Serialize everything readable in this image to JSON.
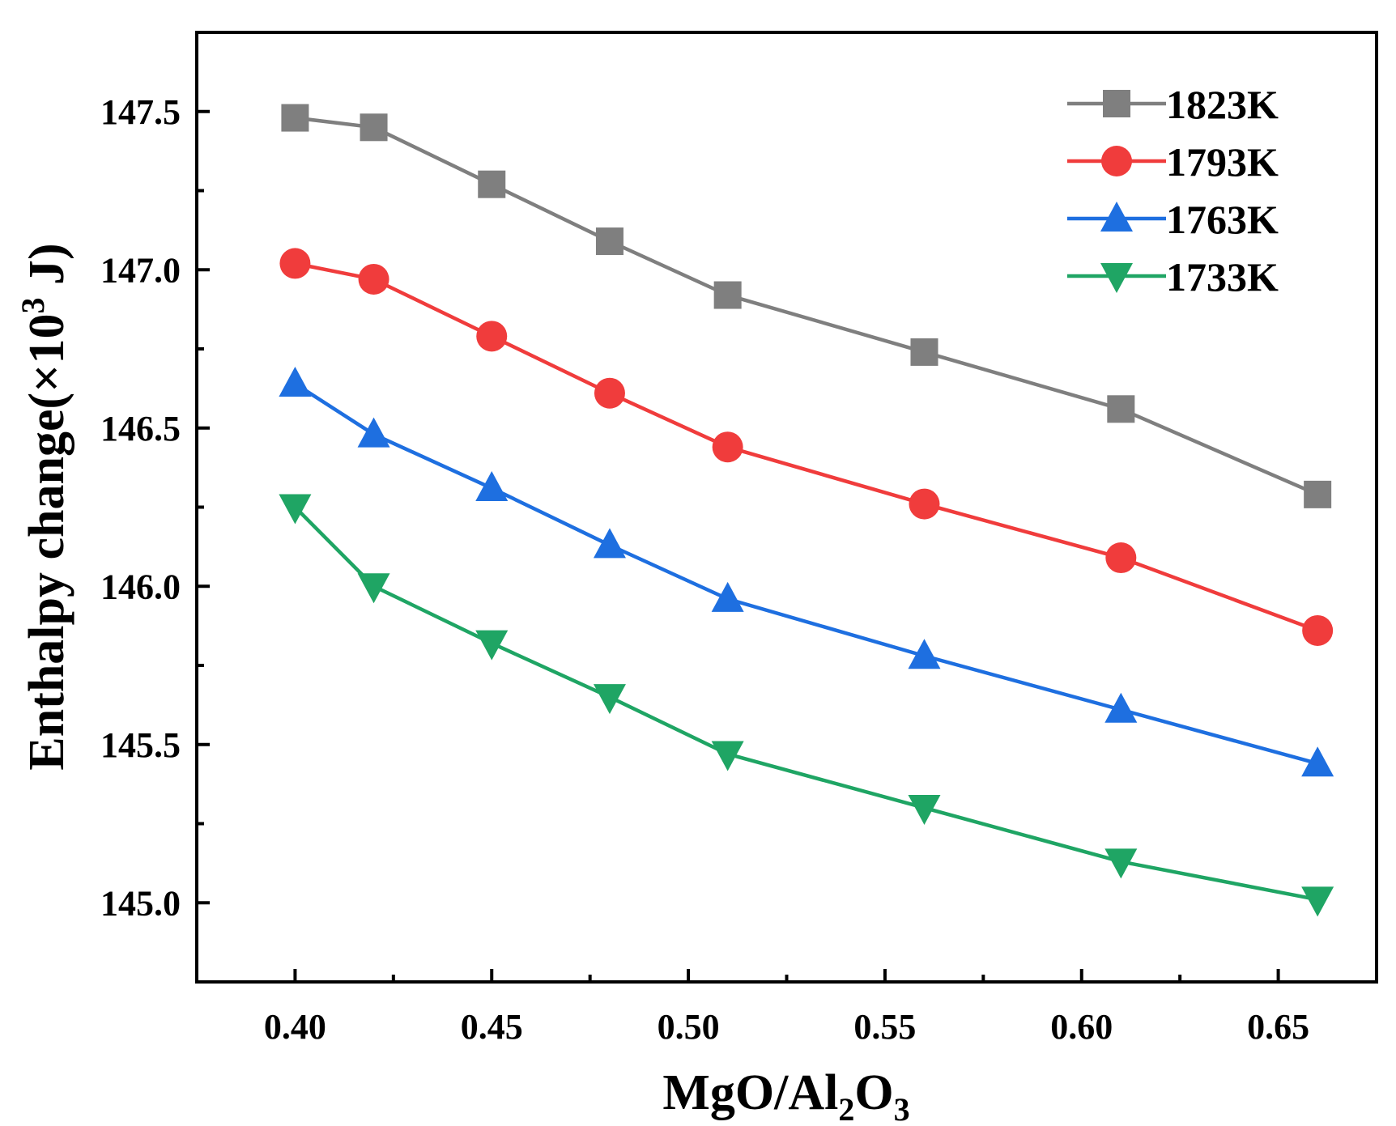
{
  "chart_data": {
    "type": "line",
    "title": "",
    "xlabel_parts": {
      "base1": "MgO/Al",
      "sub1": "2",
      "base2": "O",
      "sub2": "3"
    },
    "ylabel_parts": {
      "base": "Enthalpy change(×10",
      "sup": "3",
      "unit": " J)"
    },
    "xlim": [
      0.375,
      0.675
    ],
    "ylim": [
      144.75,
      147.75
    ],
    "x_ticks": [
      {
        "value": 0.4,
        "label": "0.40"
      },
      {
        "value": 0.45,
        "label": "0.45"
      },
      {
        "value": 0.5,
        "label": "0.50"
      },
      {
        "value": 0.55,
        "label": "0.55"
      },
      {
        "value": 0.6,
        "label": "0.60"
      },
      {
        "value": 0.65,
        "label": "0.65"
      }
    ],
    "x_minor_ticks": [
      0.425,
      0.475,
      0.525,
      0.575,
      0.625
    ],
    "y_ticks": [
      {
        "value": 145.0,
        "label": "145.0"
      },
      {
        "value": 145.5,
        "label": "145.5"
      },
      {
        "value": 146.0,
        "label": "146.0"
      },
      {
        "value": 146.5,
        "label": "146.5"
      },
      {
        "value": 147.0,
        "label": "147.0"
      },
      {
        "value": 147.5,
        "label": "147.5"
      }
    ],
    "y_minor_ticks": [
      145.25,
      145.75,
      146.25,
      146.75,
      147.25
    ],
    "x": [
      0.4,
      0.42,
      0.45,
      0.48,
      0.51,
      0.56,
      0.61,
      0.66
    ],
    "legend_position": "top-right",
    "grid": false,
    "series": [
      {
        "name": "1823K",
        "color": "#7f7f7f",
        "marker": "square",
        "values": [
          147.48,
          147.45,
          147.27,
          147.09,
          146.92,
          146.74,
          146.56,
          146.29
        ]
      },
      {
        "name": "1793K",
        "color": "#f03c3c",
        "marker": "circle",
        "values": [
          147.02,
          146.97,
          146.79,
          146.61,
          146.44,
          146.26,
          146.09,
          145.86
        ]
      },
      {
        "name": "1763K",
        "color": "#1e6fe0",
        "marker": "triangle-up",
        "values": [
          146.64,
          146.48,
          146.31,
          146.13,
          145.96,
          145.78,
          145.61,
          145.44
        ]
      },
      {
        "name": "1733K",
        "color": "#1fa564",
        "marker": "triangle-down",
        "values": [
          146.25,
          146.0,
          145.82,
          145.65,
          145.47,
          145.3,
          145.13,
          145.01
        ]
      }
    ]
  }
}
